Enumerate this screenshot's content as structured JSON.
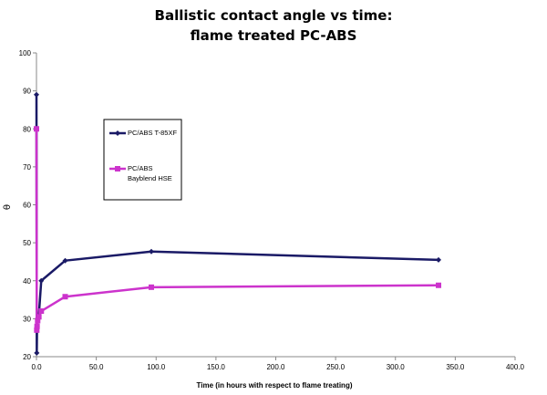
{
  "chart_data": {
    "type": "line",
    "title": [
      "Ballistic contact angle vs time:",
      "flame treated PC-ABS"
    ],
    "xlabel": "Time (in hours with respect to flame treating)",
    "ylabel": "θ",
    "xlim": [
      0,
      400
    ],
    "ylim": [
      20,
      100
    ],
    "xticks": [
      0,
      50,
      100,
      150,
      200,
      250,
      300,
      350,
      400
    ],
    "xtick_labels": [
      "0.0",
      "50.0",
      "100.0",
      "150.0",
      "200.0",
      "250.0",
      "300.0",
      "350.0",
      "400.0"
    ],
    "yticks": [
      20,
      30,
      40,
      50,
      60,
      70,
      80,
      90,
      100
    ],
    "grid": false,
    "legend_position": "upper-left-inside",
    "series": [
      {
        "name": "PC/ABS T-85XF",
        "legend_lines": [
          "PC/ABS T-85XF"
        ],
        "color": "#1a1a66",
        "marker": "diamond",
        "x": [
          0,
          0.25,
          0.5,
          1,
          2,
          4,
          24,
          96,
          336
        ],
        "y": [
          89,
          21,
          28,
          30,
          31,
          40,
          45.3,
          47.7,
          45.5
        ]
      },
      {
        "name": "PC/ABS Bayblend HSE",
        "legend_lines": [
          "PC/ABS",
          "Bayblend HSE"
        ],
        "color": "#cc33cc",
        "marker": "square",
        "x": [
          0,
          0.25,
          0.5,
          1,
          2,
          4,
          24,
          96,
          336
        ],
        "y": [
          80,
          27,
          28,
          29.5,
          30.5,
          32,
          35.8,
          38.3,
          38.8
        ]
      }
    ]
  }
}
